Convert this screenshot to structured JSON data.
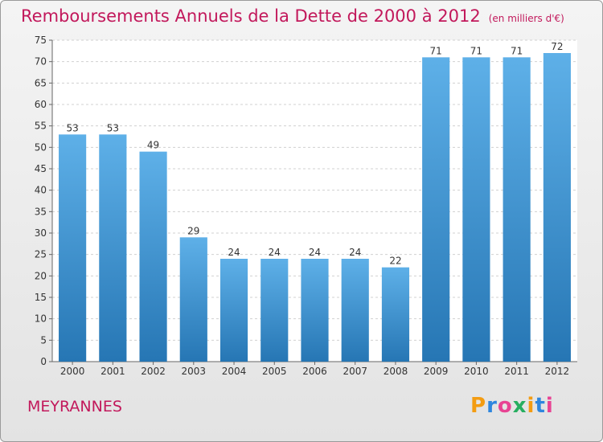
{
  "title": "Remboursements Annuels de la Dette de 2000 à 2012",
  "unit": "(en milliers d'€)",
  "town": "MEYRANNES",
  "logo": "Proxiti",
  "colors": {
    "bar_top": "#5eb0e8",
    "bar_bottom": "#2676b4",
    "title": "#c2185b",
    "grid": "#d0d0d0"
  },
  "chart_data": {
    "type": "bar",
    "categories": [
      "2000",
      "2001",
      "2002",
      "2003",
      "2004",
      "2005",
      "2006",
      "2007",
      "2008",
      "2009",
      "2010",
      "2011",
      "2012"
    ],
    "values": [
      53,
      53,
      49,
      29,
      24,
      24,
      24,
      24,
      22,
      71,
      71,
      71,
      72
    ],
    "title": "Remboursements Annuels de la Dette de 2000 à 2012",
    "xlabel": "",
    "ylabel": "",
    "ylim": [
      0,
      75
    ],
    "yticks": [
      0,
      5,
      10,
      15,
      20,
      25,
      30,
      35,
      40,
      45,
      50,
      55,
      60,
      65,
      70,
      75
    ],
    "grid": true,
    "data_labels": true
  }
}
